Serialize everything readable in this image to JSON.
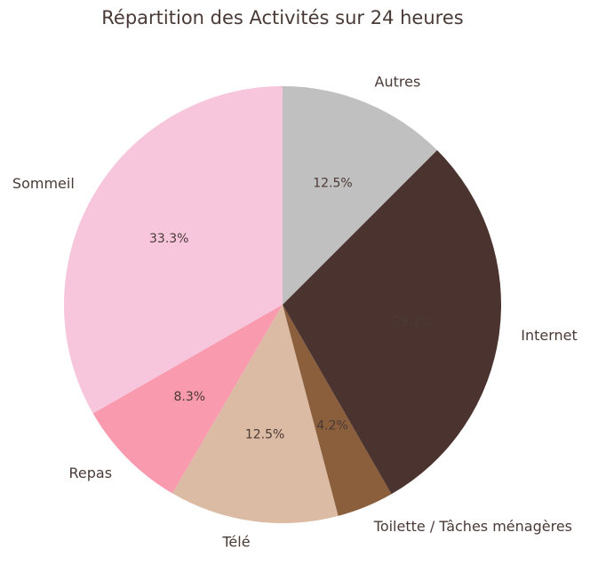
{
  "chart_data": {
    "type": "pie",
    "title": "Répartition des Activités sur 24 heures",
    "categories": [
      "Sommeil",
      "Repas",
      "Télé",
      "Toilette / Tâches ménagères",
      "Internet",
      "Autres"
    ],
    "values": [
      33.3,
      8.3,
      12.5,
      4.2,
      29.2,
      12.5
    ],
    "value_labels": [
      "33.3%",
      "8.3%",
      "12.5%",
      "4.2%",
      "29.2%",
      "12.5%"
    ],
    "colors": [
      "#f7c6dc",
      "#f99aae",
      "#dbbba3",
      "#8b5e3c",
      "#4b3430",
      "#c0c0c0"
    ],
    "start_angle": 90,
    "counterclock": true
  }
}
